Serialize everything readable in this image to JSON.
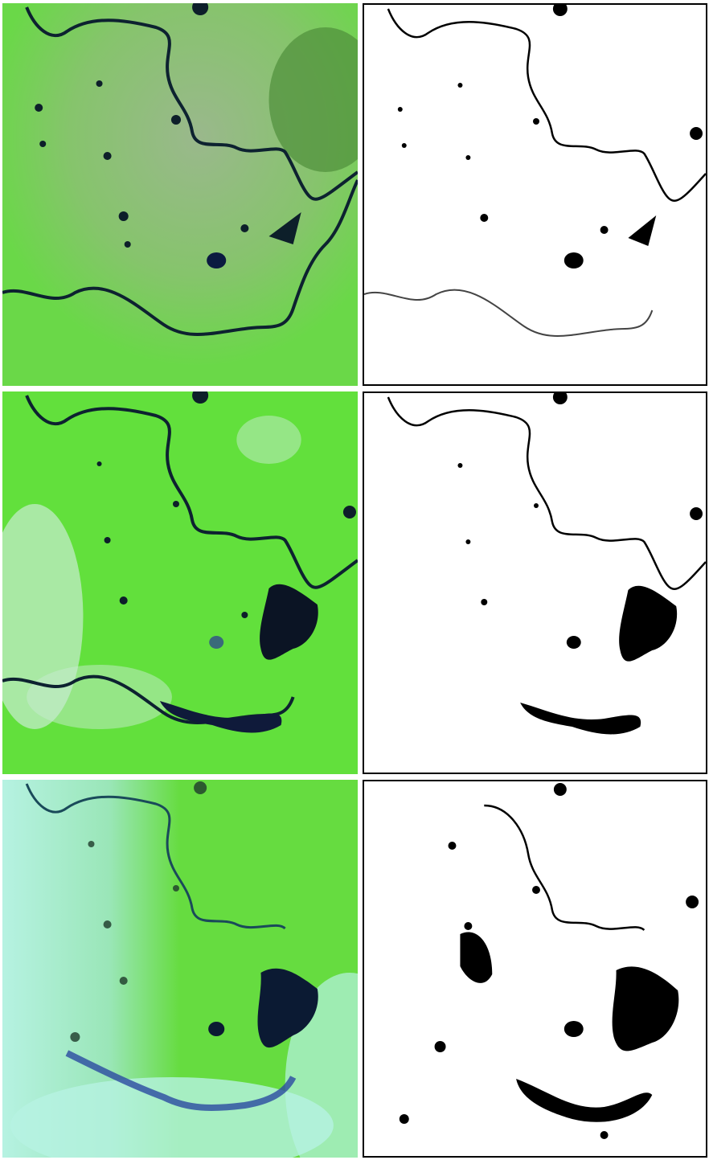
{
  "figure": {
    "rows": [
      {
        "id": "row-1",
        "panels": [
          "satellite-image",
          "water-mask"
        ],
        "flood_level": "normal"
      },
      {
        "id": "row-2",
        "panels": [
          "satellite-image",
          "water-mask"
        ],
        "flood_level": "moderate"
      },
      {
        "id": "row-3",
        "panels": [
          "satellite-image",
          "water-mask"
        ],
        "flood_level": "severe"
      }
    ],
    "colors": {
      "land": "#5ee33a",
      "land_dry": "#8fc27a",
      "water": "#0b1a33",
      "cloud": "#d8f0e8",
      "haze": "#aef0e0",
      "mask_bg": "#ffffff",
      "mask_water": "#000000"
    }
  }
}
